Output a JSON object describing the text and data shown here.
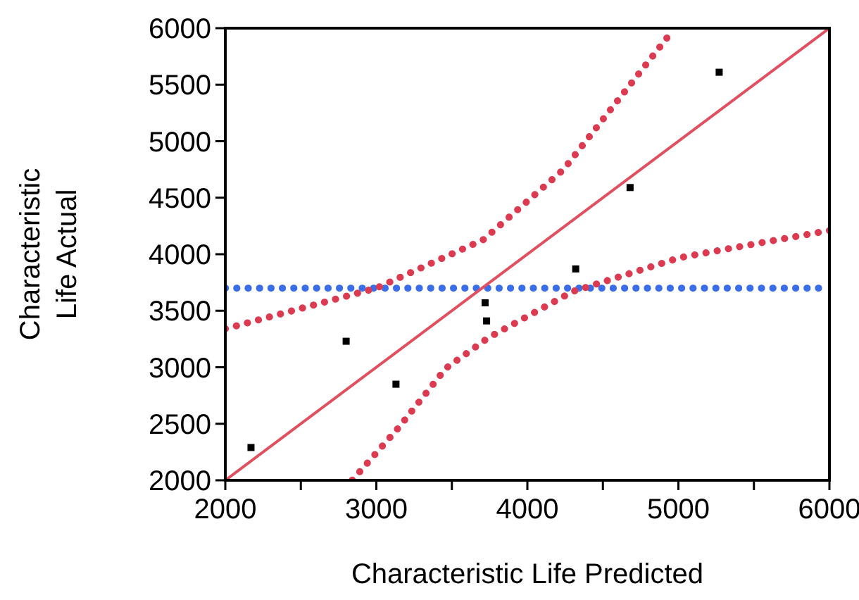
{
  "chart_data": {
    "type": "scatter",
    "xlabel": "Characteristic Life Predicted",
    "ylabel": "Characteristic Life Actual",
    "xlim": [
      2000,
      6000
    ],
    "ylim": [
      2000,
      6000
    ],
    "xticks": [
      2000,
      {
        "value": 2500,
        "label": null
      },
      3000,
      {
        "value": 3500,
        "label": null
      },
      4000,
      {
        "value": 4500,
        "label": null
      },
      5000,
      {
        "value": 5500,
        "label": null
      },
      6000
    ],
    "yticks": [
      2000,
      2500,
      3000,
      3500,
      4000,
      4500,
      5000,
      5500,
      6000
    ],
    "grid": false,
    "series": [
      {
        "type": "line",
        "color": "#e05060",
        "line_style": "solid",
        "x": [
          2000,
          6000
        ],
        "values": [
          2000,
          6000
        ]
      },
      {
        "type": "line",
        "color": "#dc3a50",
        "line_style": "dotted",
        "x": [
          2000,
          3000,
          3710,
          4240,
          4610,
          4940
        ],
        "values": [
          3340,
          3700,
          4130,
          4750,
          5380,
          5940
        ]
      },
      {
        "type": "line",
        "color": "#dc3a50",
        "line_style": "dotted",
        "x": [
          2840,
          3150,
          3460,
          3740,
          4300,
          5010,
          5500,
          6000
        ],
        "values": [
          2000,
          2470,
          2990,
          3260,
          3670,
          3970,
          4090,
          4210
        ]
      },
      {
        "color": "#000000",
        "marker": "square",
        "x": [
          2170,
          2800,
          3130,
          3720,
          3730,
          4320,
          4680,
          5270
        ],
        "values": [
          2290,
          3230,
          2850,
          3570,
          3410,
          3870,
          4590,
          5610
        ]
      }
    ],
    "ref_lines": [
      {
        "axis": "y",
        "value": 3700,
        "color": "#3a6ee8",
        "line_style": "dotted"
      }
    ]
  }
}
